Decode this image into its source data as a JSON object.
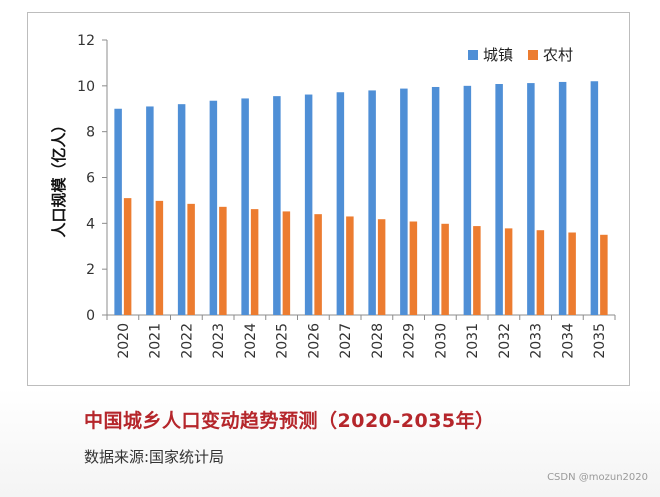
{
  "chart_data": {
    "type": "bar",
    "title": "中国城乡人口变动趋势预测（2020-2035年）",
    "ylabel": "人口规模（亿人）",
    "xlabel": "",
    "ylim": [
      0,
      12
    ],
    "yticks": [
      0,
      2,
      4,
      6,
      8,
      10,
      12
    ],
    "categories": [
      "2020",
      "2021",
      "2022",
      "2023",
      "2024",
      "2025",
      "2026",
      "2027",
      "2028",
      "2029",
      "2030",
      "2031",
      "2032",
      "2033",
      "2034",
      "2035"
    ],
    "series": [
      {
        "name": "城镇",
        "color": "#4f8fd6",
        "values": [
          9.0,
          9.1,
          9.2,
          9.35,
          9.45,
          9.55,
          9.62,
          9.72,
          9.8,
          9.88,
          9.95,
          10.0,
          10.08,
          10.12,
          10.17,
          10.2
        ]
      },
      {
        "name": "农村",
        "color": "#ec7c30",
        "values": [
          5.1,
          4.98,
          4.85,
          4.72,
          4.62,
          4.52,
          4.4,
          4.3,
          4.18,
          4.08,
          3.98,
          3.88,
          3.78,
          3.7,
          3.6,
          3.5
        ]
      }
    ],
    "legend": "top-right",
    "grid": false
  },
  "caption": {
    "title": "中国城乡人口变动趋势预测（2020-2035年）",
    "source": "数据来源:国家统计局"
  },
  "watermark": "CSDN @mozun2020"
}
